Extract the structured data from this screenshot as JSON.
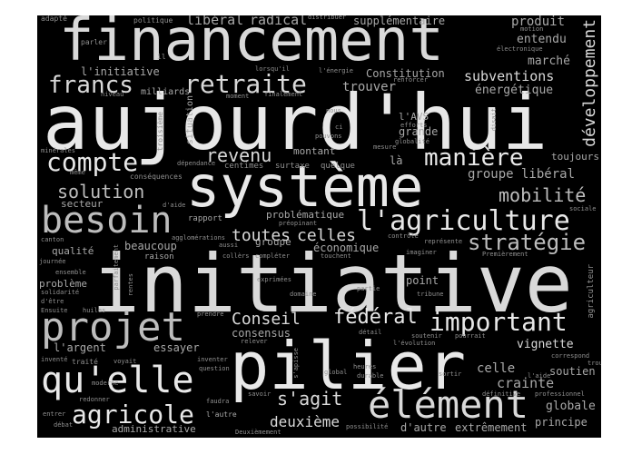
{
  "cloud": {
    "background": "#000000",
    "words": {
      "aujourdhui": "aujourd'hui",
      "financement": "financement",
      "systeme": "système",
      "initiative": "initiative",
      "pilier": "pilier",
      "projet": "projet",
      "quelle": "qu'elle",
      "element": "élément",
      "besoin": "besoin",
      "agriculture": "l'agriculture",
      "retraite": "retraite",
      "francs": "francs",
      "compte": "compte",
      "maniere": "manière",
      "important": "important",
      "strategie": "stratégie",
      "agricole": "agricole",
      "developpement": "développement",
      "mobilite": "mobilité",
      "solution": "solution",
      "revenu": "revenu",
      "conseil": "Conseil",
      "federal": "fédéral",
      "toutes": "toutes",
      "celles": "celles",
      "sagit": "s'agit",
      "deuxieme": "deuxième",
      "liberal": "libéral",
      "radical": "radical",
      "supplementaire": "supplémentaire",
      "produit": "produit",
      "entendu": "entendu",
      "marche": "marché",
      "subventions": "subventions",
      "energetique": "énergétique",
      "constitution": "Constitution",
      "linitiative": "l'initiative",
      "trouver": "trouver",
      "milliards": "milliards",
      "lavs": "l'AVS",
      "grande": "grande",
      "toujours": "toujours",
      "groupe_liberal": "groupe libéral",
      "montant": "montant",
      "situation": "situation",
      "la": "là",
      "consensus": "consensus",
      "vignette": "vignette",
      "crainte": "crainte",
      "celle": "celle",
      "soutien": "soutien",
      "globale": "globale",
      "principe": "principe",
      "extremement": "extrêmement",
      "dautre": "d'autre",
      "largent": "l'argent",
      "essayer": "essayer",
      "administrative": "administrative",
      "probleme": "problème",
      "qualite": "qualité",
      "beaucoup": "beaucoup",
      "economique": "économique",
      "groupe": "groupe",
      "point": "point",
      "secteur": "secteur",
      "rapport": "rapport",
      "problematique": "problématique",
      "centimes": "centimes",
      "surtaxe": "surtaxe",
      "quelque": "quelque",
      "adapte": "adapté",
      "politique": "politique",
      "distribuer": "distribuer",
      "parler": "parler",
      "il": "il",
      "motion": "motion",
      "electronique": "électronique",
      "lorsquil": "lorsqu'il",
      "lenergie": "l'énergie",
      "renforcer": "renforcer",
      "niveau": "niveau",
      "moment": "moment",
      "finalement": "finalement",
      "nous": "nous",
      "ci": "ci",
      "pouvons": "pouvons",
      "efforts": "efforts",
      "globalite": "globalité",
      "disait": "disait",
      "troisieme": "troisième",
      "minerales": "minérales",
      "meme": "même",
      "consequences": "conséquences",
      "dependance": "dépendance",
      "mesure": "mesure",
      "daide": "d'aide",
      "sociale": "sociale",
      "canton": "canton",
      "agglomerations": "agglomérations",
      "propinant": "préopinant",
      "controle": "contrôle",
      "represente": "représente",
      "journee": "journée",
      "raison": "raison",
      "aussi": "aussi",
      "colleres": "collèrs",
      "completer": "compléter",
      "touchent": "touchent",
      "imaginer": "imaginer",
      "premierement": "Premièrement",
      "ensemble": "ensemble",
      "parfaitement": "parfaitement",
      "rentes": "rentes",
      "solidarite": "solidarité",
      "exprimees": "exprimées",
      "domaine": "domaine",
      "partie": "partie",
      "tribune": "tribune",
      "agriculteur": "agriculteur",
      "ensuite": "Ensuite",
      "huiles": "huiles",
      "detre": "d'être",
      "prendre": "prendre",
      "releve": "relever",
      "detail": "détail",
      "soutenir": "soutenir",
      "pourrait": "pourrait",
      "levolution": "l'évolution",
      "correspond": "correspond",
      "invente": "inventé",
      "traite": "traité",
      "voyait": "voyait",
      "inventer": "inventer",
      "question": "question",
      "sapsisse": "s'apisse",
      "global": "global",
      "heures": "heures",
      "durable": "durable",
      "sortir": "sortir",
      "laide": "l'aide",
      "trouve": "trouve",
      "moderne": "moderne",
      "redonner": "redonner",
      "faudra": "faudra",
      "savoir": "savoir",
      "definitive": "définitive",
      "professionnel": "professionnel",
      "entrer": "entrer",
      "lautre": "l'autre",
      "debat": "débat",
      "deuxiemement": "Deuxièmement",
      "possibilite": "possibilité"
    }
  }
}
